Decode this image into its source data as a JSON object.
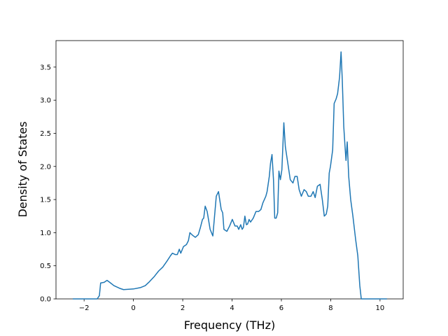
{
  "chart_data": {
    "type": "line",
    "x_label": "Frequency (THz)",
    "y_label": "Density of States",
    "xlim": [
      -3.14,
      10.94
    ],
    "ylim": [
      0,
      3.9
    ],
    "xticks": [
      {
        "value": -2,
        "label": "−2"
      },
      0,
      2,
      4,
      6,
      8,
      10
    ],
    "yticks": [
      {
        "value": 0,
        "label": "0.0"
      },
      0.5,
      {
        "value": 1,
        "label": "1.0"
      },
      1.5,
      {
        "value": 2,
        "label": "2.0"
      },
      2.5,
      {
        "value": 3,
        "label": "3.0"
      },
      3.5
    ],
    "grid": false,
    "series": [
      {
        "color": "#1f77b4",
        "x": [
          -2.46,
          -1.47,
          -1.38,
          -1.33,
          -1.19,
          -1.07,
          -0.96,
          -0.79,
          -0.56,
          -0.4,
          0,
          0.28,
          0.48,
          0.65,
          0.85,
          1.02,
          1.19,
          1.36,
          1.5,
          1.58,
          1.69,
          1.78,
          1.86,
          1.92,
          2.03,
          2.15,
          2.23,
          2.29,
          2.4,
          2.51,
          2.63,
          2.71,
          2.8,
          2.85,
          2.91,
          2.99,
          3.11,
          3.22,
          3.36,
          3.45,
          3.56,
          3.62,
          3.67,
          3.79,
          3.9,
          4.01,
          4.12,
          4.21,
          4.27,
          4.35,
          4.41,
          4.46,
          4.52,
          4.58,
          4.63,
          4.69,
          4.75,
          4.86,
          4.97,
          5.08,
          5.17,
          5.25,
          5.37,
          5.42,
          5.51,
          5.56,
          5.62,
          5.68,
          5.73,
          5.79,
          5.85,
          5.9,
          5.96,
          6.02,
          6.1,
          6.16,
          6.24,
          6.36,
          6.47,
          6.55,
          6.64,
          6.72,
          6.81,
          6.92,
          7.01,
          7.09,
          7.2,
          7.29,
          7.37,
          7.46,
          7.57,
          7.66,
          7.74,
          7.82,
          7.88,
          7.94,
          7.99,
          8.08,
          8.14,
          8.22,
          8.28,
          8.36,
          8.42,
          8.47,
          8.53,
          8.59,
          8.62,
          8.67,
          8.73,
          8.81,
          8.9,
          9.01,
          9.1,
          9.18,
          9.24,
          9.6,
          10.28
        ],
        "values": [
          0,
          0,
          0.05,
          0.24,
          0.25,
          0.28,
          0.25,
          0.2,
          0.16,
          0.14,
          0.15,
          0.17,
          0.2,
          0.26,
          0.34,
          0.42,
          0.48,
          0.57,
          0.65,
          0.69,
          0.67,
          0.67,
          0.75,
          0.69,
          0.79,
          0.82,
          0.88,
          1.0,
          0.96,
          0.93,
          0.97,
          1.07,
          1.2,
          1.22,
          1.4,
          1.32,
          1.05,
          0.95,
          1.55,
          1.62,
          1.35,
          1.3,
          1.05,
          1.02,
          1.1,
          1.2,
          1.1,
          1.1,
          1.05,
          1.12,
          1.05,
          1.08,
          1.25,
          1.12,
          1.13,
          1.2,
          1.16,
          1.22,
          1.32,
          1.32,
          1.35,
          1.45,
          1.55,
          1.62,
          1.85,
          2.05,
          2.18,
          1.8,
          1.22,
          1.22,
          1.3,
          1.93,
          1.8,
          1.95,
          2.66,
          2.3,
          2.1,
          1.8,
          1.75,
          1.85,
          1.85,
          1.65,
          1.55,
          1.65,
          1.62,
          1.55,
          1.55,
          1.62,
          1.53,
          1.7,
          1.73,
          1.5,
          1.25,
          1.28,
          1.4,
          1.9,
          2.0,
          2.25,
          2.95,
          3.02,
          3.1,
          3.35,
          3.73,
          3.3,
          2.6,
          2.25,
          2.09,
          2.37,
          1.85,
          1.5,
          1.25,
          0.9,
          0.65,
          0.2,
          0,
          0,
          0
        ]
      }
    ]
  }
}
